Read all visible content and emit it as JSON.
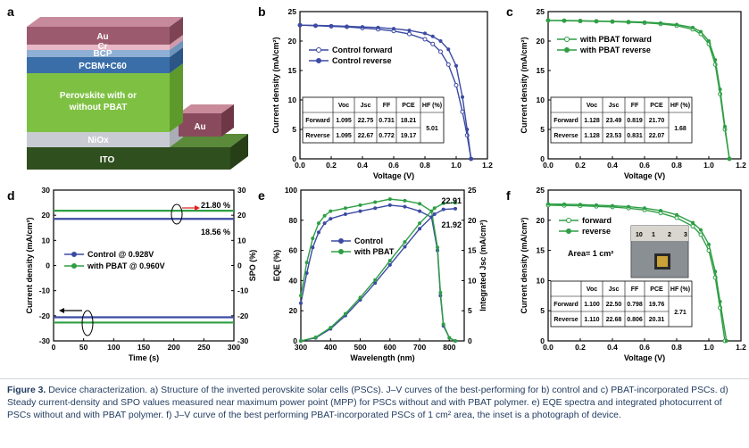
{
  "panels": {
    "a": "a",
    "b": "b",
    "c": "c",
    "d": "d",
    "e": "e",
    "f": "f"
  },
  "colors": {
    "blue": "#3b4aa3",
    "green": "#2e9e44",
    "red": "#e02020"
  },
  "schematic": {
    "layers": [
      "Au",
      "Cr",
      "BCP",
      "PCBM+C60",
      "Perovskite with or",
      "without PBAT",
      "NiOx",
      "ITO"
    ],
    "side_electrode": "Au"
  },
  "caption": {
    "title": "Figure 3.",
    "text": " Device characterization. a) Structure of the inverted perovskite solar cells (PSCs). J–V curves of the best-performing for b) control and c) PBAT-incorporated PSCs. d) Steady current-density and SPO values measured near maximum power point (MPP) for PSCs without and with PBAT polymer. e) EQE spectra and integrated photocurrent of PSCs without and with PBAT polymer. f) J–V curve of the best performing PBAT-incorporated PSCs of 1 cm² area, the inset is a photograph of device."
  },
  "chart_data": [
    {
      "panel": "b",
      "type": "line",
      "xlabel": "Voltage (V)",
      "ylabel": "Current density (mA/cm²)",
      "xlim": [
        0,
        1.2
      ],
      "ylim": [
        0,
        25
      ],
      "xticks": [
        "0.0",
        "0.2",
        "0.4",
        "0.6",
        "0.8",
        "1.0",
        "1.2"
      ],
      "yticks": [
        "0",
        "5",
        "10",
        "15",
        "20",
        "25"
      ],
      "legend": [
        "Control forward",
        "Control reverse"
      ],
      "series": [
        {
          "name": "Control forward",
          "x": [
            0,
            0.1,
            0.2,
            0.3,
            0.4,
            0.5,
            0.6,
            0.7,
            0.8,
            0.85,
            0.9,
            0.95,
            1.0,
            1.04,
            1.07,
            1.095
          ],
          "y": [
            22.7,
            22.6,
            22.5,
            22.4,
            22.2,
            22.0,
            21.7,
            21.2,
            20.3,
            19.5,
            18.2,
            16.0,
            12.5,
            8.0,
            4.0,
            0
          ]
        },
        {
          "name": "Control reverse",
          "x": [
            0,
            0.1,
            0.2,
            0.3,
            0.4,
            0.5,
            0.6,
            0.7,
            0.8,
            0.85,
            0.9,
            0.95,
            1.0,
            1.04,
            1.07,
            1.095
          ],
          "y": [
            22.7,
            22.65,
            22.6,
            22.5,
            22.4,
            22.3,
            22.1,
            21.8,
            21.3,
            20.8,
            20.0,
            18.6,
            15.8,
            10.5,
            5.0,
            0
          ]
        }
      ],
      "table": {
        "header": [
          "",
          "Voc",
          "Jsc",
          "FF",
          "PCE",
          "HF (%)"
        ],
        "rows": [
          [
            "Forward",
            "1.095",
            "22.75",
            "0.731",
            "18.21"
          ],
          [
            "Reverse",
            "1.095",
            "22.67",
            "0.772",
            "19.17"
          ]
        ],
        "hf": "5.01"
      }
    },
    {
      "panel": "c",
      "type": "line",
      "xlabel": "Voltage (V)",
      "ylabel": "Current density (mA/cm²)",
      "xlim": [
        0,
        1.2
      ],
      "ylim": [
        0,
        25
      ],
      "xticks": [
        "0.0",
        "0.2",
        "0.4",
        "0.6",
        "0.8",
        "1.0",
        "1.2"
      ],
      "yticks": [
        "0",
        "5",
        "10",
        "15",
        "20",
        "25"
      ],
      "legend": [
        "with PBAT forward",
        "with PBAT reverse"
      ],
      "series": [
        {
          "name": "with PBAT forward",
          "x": [
            0,
            0.1,
            0.2,
            0.3,
            0.4,
            0.5,
            0.6,
            0.7,
            0.8,
            0.9,
            0.95,
            1.0,
            1.04,
            1.07,
            1.1,
            1.128
          ],
          "y": [
            23.5,
            23.45,
            23.4,
            23.35,
            23.3,
            23.2,
            23.1,
            22.9,
            22.6,
            22.0,
            21.2,
            19.5,
            16.0,
            11.0,
            5.0,
            0
          ]
        },
        {
          "name": "with PBAT reverse",
          "x": [
            0,
            0.1,
            0.2,
            0.3,
            0.4,
            0.5,
            0.6,
            0.7,
            0.8,
            0.9,
            0.95,
            1.0,
            1.04,
            1.07,
            1.1,
            1.128
          ],
          "y": [
            23.5,
            23.5,
            23.45,
            23.4,
            23.35,
            23.3,
            23.2,
            23.05,
            22.8,
            22.3,
            21.6,
            20.0,
            16.8,
            11.8,
            5.5,
            0
          ]
        }
      ],
      "table": {
        "header": [
          "",
          "Voc",
          "Jsc",
          "FF",
          "PCE",
          "HF (%)"
        ],
        "rows": [
          [
            "Forward",
            "1.128",
            "23.49",
            "0.819",
            "21.70"
          ],
          [
            "Reverse",
            "1.128",
            "23.53",
            "0.831",
            "22.07"
          ]
        ],
        "hf": "1.68"
      }
    },
    {
      "panel": "d",
      "type": "line",
      "xlabel": "Time (s)",
      "ylabel": "Current density (mA/cm²)",
      "y2label": "SPO (%)",
      "xlim": [
        0,
        300
      ],
      "ylim": [
        -30,
        30
      ],
      "y2lim": [
        -30,
        30
      ],
      "xticks": [
        "0",
        "50",
        "100",
        "150",
        "200",
        "250",
        "300"
      ],
      "yticks": [
        "-30",
        "-20",
        "-10",
        "0",
        "10",
        "20",
        "30"
      ],
      "y2ticks": [
        "-30",
        "-20",
        "-10",
        "0",
        "10",
        "20",
        "30"
      ],
      "legend": [
        "Control @ 0.928V",
        "with PBAT @ 0.960V"
      ],
      "series": [
        {
          "name": "Control @ 0.928V",
          "axis": "left",
          "x": [
            0,
            300
          ],
          "y": [
            -20.6,
            -20.6
          ]
        },
        {
          "name": "with PBAT @ 0.960V",
          "axis": "left",
          "x": [
            0,
            300
          ],
          "y": [
            -22.7,
            -22.7
          ]
        },
        {
          "name": "Control @ 0.928V",
          "axis": "right",
          "x": [
            0,
            300
          ],
          "y": [
            18.56,
            18.56
          ]
        },
        {
          "name": "with PBAT @ 0.960V",
          "axis": "right",
          "x": [
            0,
            300
          ],
          "y": [
            21.8,
            21.8
          ]
        }
      ],
      "annotations": [
        "21.80 %",
        "18.56 %"
      ]
    },
    {
      "panel": "e",
      "type": "line",
      "xlabel": "Wavelength (nm)",
      "ylabel": "EQE (%)",
      "y2label": "Integrated Jsc (mA/cm²)",
      "xlim": [
        300,
        850
      ],
      "ylim": [
        0,
        100
      ],
      "y2lim": [
        0,
        25
      ],
      "xticks": [
        "300",
        "400",
        "500",
        "600",
        "700",
        "800"
      ],
      "yticks": [
        "0",
        "20",
        "40",
        "60",
        "80",
        "100"
      ],
      "y2ticks": [
        "0",
        "5",
        "10",
        "15",
        "20",
        "25"
      ],
      "legend": [
        "Control",
        "with PBAT"
      ],
      "series": [
        {
          "name": "Control",
          "axis": "left",
          "x": [
            300,
            320,
            340,
            360,
            380,
            400,
            450,
            500,
            550,
            600,
            650,
            700,
            740,
            760,
            770,
            780,
            800,
            820
          ],
          "y": [
            25,
            45,
            62,
            72,
            78,
            81,
            84,
            86,
            88,
            90,
            89,
            86,
            82,
            60,
            30,
            10,
            2,
            0
          ]
        },
        {
          "name": "with PBAT",
          "axis": "left",
          "x": [
            300,
            320,
            340,
            360,
            380,
            400,
            450,
            500,
            550,
            600,
            650,
            700,
            740,
            760,
            770,
            780,
            800,
            820
          ],
          "y": [
            30,
            52,
            68,
            78,
            83,
            86,
            88,
            90,
            92,
            94,
            93,
            91,
            86,
            62,
            32,
            11,
            2,
            0
          ]
        },
        {
          "name": "Control",
          "axis": "right",
          "x": [
            300,
            350,
            400,
            450,
            500,
            550,
            600,
            650,
            700,
            750,
            780,
            820
          ],
          "y": [
            0,
            0.5,
            2.0,
            4.2,
            6.8,
            9.6,
            12.6,
            15.6,
            18.6,
            21.0,
            21.8,
            21.92
          ]
        },
        {
          "name": "with PBAT",
          "axis": "right",
          "x": [
            300,
            350,
            400,
            450,
            500,
            550,
            600,
            650,
            700,
            750,
            780,
            820
          ],
          "y": [
            0,
            0.6,
            2.2,
            4.5,
            7.2,
            10.1,
            13.3,
            16.4,
            19.5,
            22.0,
            22.8,
            22.91
          ]
        }
      ],
      "annotations": [
        "22.91",
        "21.92"
      ]
    },
    {
      "panel": "f",
      "type": "line",
      "xlabel": "Voltage (V)",
      "ylabel": "Current density (mA/cm²)",
      "xlim": [
        0,
        1.2
      ],
      "ylim": [
        0,
        25
      ],
      "xticks": [
        "0.0",
        "0.2",
        "0.4",
        "0.6",
        "0.8",
        "1.0",
        "1.2"
      ],
      "yticks": [
        "0",
        "5",
        "10",
        "15",
        "20",
        "25"
      ],
      "legend": [
        "forward",
        "reverse"
      ],
      "annotation": "Area= 1 cm²",
      "ruler_ticks": [
        "10",
        "1",
        "2",
        "3"
      ],
      "series": [
        {
          "name": "forward",
          "x": [
            0,
            0.1,
            0.2,
            0.3,
            0.4,
            0.5,
            0.6,
            0.7,
            0.8,
            0.9,
            0.95,
            1.0,
            1.04,
            1.07,
            1.1
          ],
          "y": [
            22.5,
            22.45,
            22.4,
            22.3,
            22.2,
            22.0,
            21.7,
            21.2,
            20.4,
            19.0,
            17.6,
            15.0,
            10.5,
            5.5,
            0
          ]
        },
        {
          "name": "reverse",
          "x": [
            0,
            0.1,
            0.2,
            0.3,
            0.4,
            0.5,
            0.6,
            0.7,
            0.8,
            0.9,
            0.95,
            1.0,
            1.04,
            1.07,
            1.11
          ],
          "y": [
            22.7,
            22.65,
            22.6,
            22.5,
            22.4,
            22.25,
            22.0,
            21.6,
            20.9,
            19.6,
            18.4,
            16.0,
            11.5,
            6.5,
            0
          ]
        }
      ],
      "table": {
        "header": [
          "",
          "Voc",
          "Jsc",
          "FF",
          "PCE",
          "HF (%)"
        ],
        "rows": [
          [
            "Forward",
            "1.100",
            "22.50",
            "0.798",
            "19.76"
          ],
          [
            "Reverse",
            "1.110",
            "22.68",
            "0.806",
            "20.31"
          ]
        ],
        "hf": "2.71"
      }
    }
  ]
}
